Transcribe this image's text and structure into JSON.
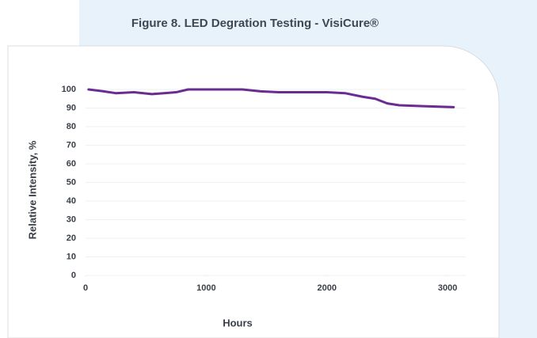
{
  "chart_data": {
    "type": "line",
    "title": "Figure 8. LED Degration Testing - VisiCure®",
    "xlabel": "Hours",
    "ylabel": "Relative Intensity, %",
    "x": [
      25,
      150,
      250,
      400,
      550,
      650,
      750,
      850,
      1000,
      1300,
      1450,
      1600,
      2000,
      2150,
      2300,
      2400,
      2500,
      2600,
      2800,
      3050
    ],
    "series": [
      {
        "name": "VisiCure",
        "color": "#6a2c91",
        "values": [
          100,
          99,
          98,
          98.5,
          97.5,
          98,
          98.5,
          100,
          100,
          100,
          99,
          98.5,
          98.5,
          98,
          96,
          95,
          92.5,
          91.5,
          91,
          90.5
        ]
      }
    ],
    "xlim": [
      0,
      3150
    ],
    "xticks": [
      0,
      1000,
      2000,
      3000
    ],
    "ylim": [
      0,
      100
    ],
    "yticks": [
      0,
      10,
      20,
      30,
      40,
      50,
      60,
      70,
      80,
      90,
      100
    ],
    "grid": true
  }
}
